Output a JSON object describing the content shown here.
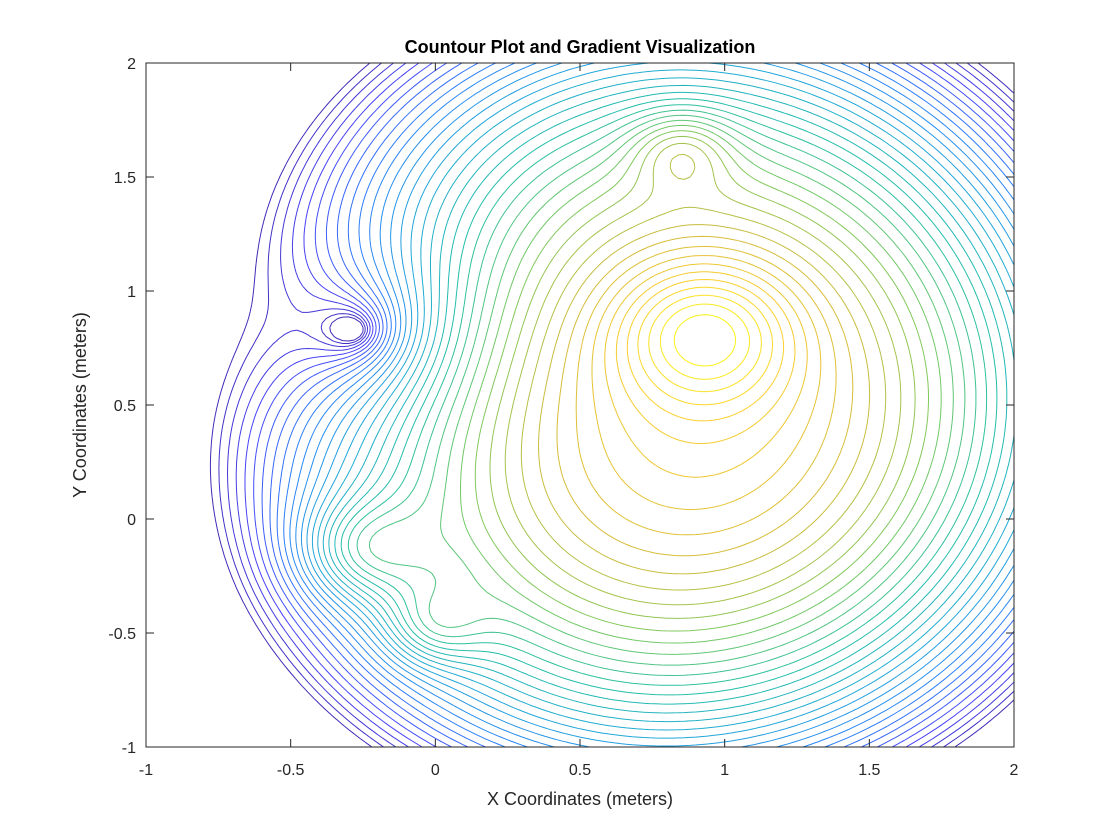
{
  "chart_data": {
    "type": "contour",
    "title": "Countour Plot and Gradient Visualization",
    "xlabel": "X Coordinates (meters)",
    "ylabel": "Y Coordinates (meters)",
    "xlim": [
      -1,
      2
    ],
    "ylim": [
      -1,
      2
    ],
    "xticks": [
      -1,
      -0.5,
      0,
      0.5,
      1,
      1.5,
      2
    ],
    "xtick_labels": [
      "-1",
      "-0.5",
      "0",
      "0.5",
      "1",
      "1.5",
      "2"
    ],
    "yticks": [
      -1,
      -0.5,
      0,
      0.5,
      1,
      1.5,
      2
    ],
    "ytick_labels": [
      "-1",
      "-0.5",
      "0",
      "0.5",
      "1",
      "1.5",
      "2"
    ],
    "grid": false,
    "colormap": "parula",
    "colormap_stops": [
      "#3e26a8",
      "#4743f8",
      "#2b81f8",
      "#1fa9d7",
      "#25bfa5",
      "#7bc95e",
      "#d5bb3a",
      "#fcce2e",
      "#f9fb15"
    ],
    "levels": 40,
    "features": [
      {
        "kind": "minimum",
        "x": -0.29,
        "y": 0.83
      },
      {
        "kind": "maximum",
        "x": 0.93,
        "y": 0.82
      },
      {
        "kind": "maximum",
        "x": 0.85,
        "y": 1.62
      },
      {
        "kind": "maximum",
        "x": -0.26,
        "y": -0.14
      },
      {
        "kind": "maximum",
        "x": -0.01,
        "y": -0.47
      }
    ]
  }
}
